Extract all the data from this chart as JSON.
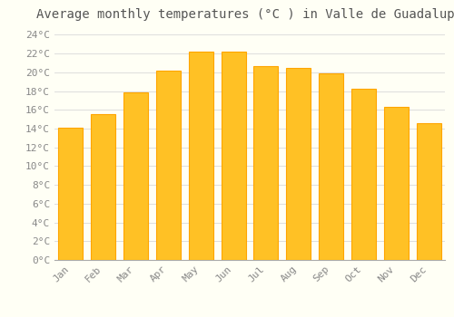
{
  "title": "Average monthly temperatures (°C ) in Valle de Guadalupe",
  "months": [
    "Jan",
    "Feb",
    "Mar",
    "Apr",
    "May",
    "Jun",
    "Jul",
    "Aug",
    "Sep",
    "Oct",
    "Nov",
    "Dec"
  ],
  "values": [
    14.1,
    15.5,
    17.9,
    20.2,
    22.2,
    22.2,
    20.7,
    20.5,
    19.9,
    18.2,
    16.3,
    14.6
  ],
  "bar_color_face": "#FFC125",
  "bar_color_edge": "#FFA500",
  "background_color": "#FFFFF5",
  "grid_color": "#DDDDDD",
  "title_fontsize": 10,
  "tick_fontsize": 8,
  "ylim": [
    0,
    25
  ],
  "ytick_step": 2,
  "font_family": "monospace"
}
